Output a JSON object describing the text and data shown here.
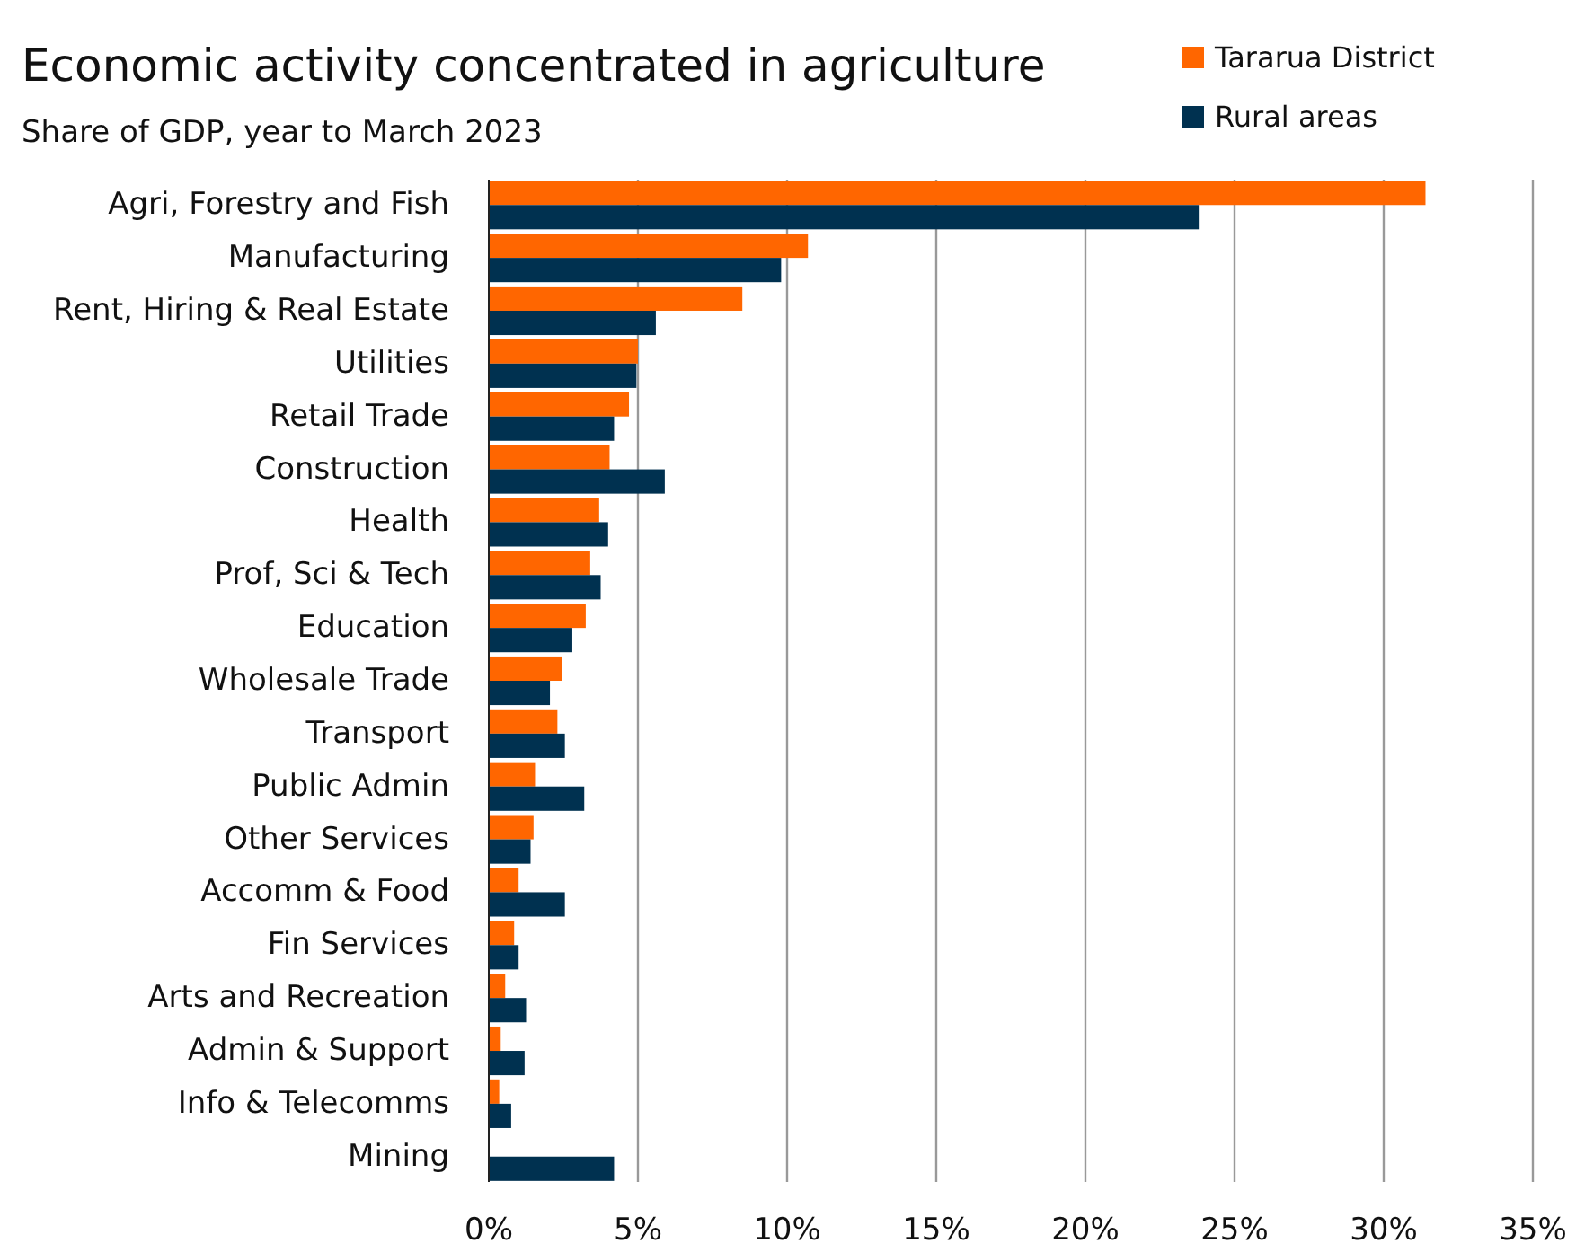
{
  "chart_data": {
    "type": "bar",
    "orientation": "horizontal",
    "title": "Economic activity concentrated in agriculture",
    "subtitle": "Share of GDP, year to March 2023",
    "categories": [
      "Agri, Forestry and Fish",
      "Manufacturing",
      "Rent, Hiring & Real Estate",
      "Utilities",
      "Retail Trade",
      "Construction",
      "Health",
      "Prof, Sci & Tech",
      "Education",
      "Wholesale Trade",
      "Transport",
      "Public Admin",
      "Other Services",
      "Accomm & Food",
      "Fin Services",
      "Arts and Recreation",
      "Admin & Support",
      "Info & Telecomms",
      "Mining"
    ],
    "series": [
      {
        "name": "Tararua District",
        "color": "#ff6600",
        "values": [
          31.4,
          10.7,
          8.5,
          5.0,
          4.7,
          4.05,
          3.7,
          3.4,
          3.25,
          2.45,
          2.3,
          1.55,
          1.5,
          1.0,
          0.85,
          0.55,
          0.4,
          0.35,
          0
        ]
      },
      {
        "name": "Rural areas",
        "color": "#003150",
        "values": [
          23.8,
          9.8,
          5.6,
          4.95,
          4.2,
          5.9,
          4.0,
          3.75,
          2.8,
          2.05,
          2.55,
          3.2,
          1.4,
          2.55,
          1.0,
          1.25,
          1.2,
          0.75,
          4.2
        ]
      }
    ],
    "xlim": [
      0,
      35
    ],
    "xticks": [
      {
        "value": 0,
        "label": "0%"
      },
      {
        "value": 5,
        "label": "5%"
      },
      {
        "value": 10,
        "label": "10%"
      },
      {
        "value": 15,
        "label": "15%"
      },
      {
        "value": 20,
        "label": "20%"
      },
      {
        "value": 25,
        "label": "25%"
      },
      {
        "value": 30,
        "label": "30%"
      },
      {
        "value": 35,
        "label": "35%"
      }
    ],
    "grid": "x",
    "legend": "top right"
  }
}
